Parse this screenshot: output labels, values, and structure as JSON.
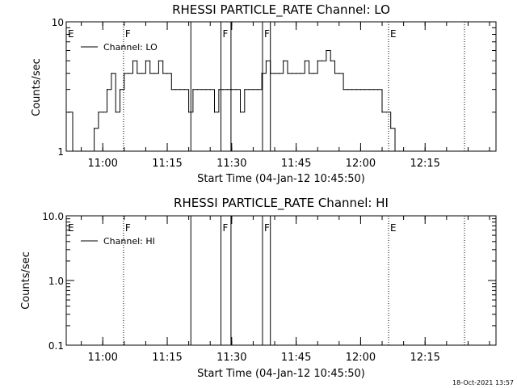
{
  "footer_timestamp": "18-Oct-2021 13:57",
  "chart_data": [
    {
      "type": "line",
      "title": "RHESSI PARTICLE_RATE Channel: LO",
      "xlabel": "Start Time (04-Jan-12 10:45:50)",
      "ylabel": "Counts/sec",
      "y_scale": "log",
      "ylim": [
        1,
        10
      ],
      "y_ticks": [
        "1",
        "10"
      ],
      "x_ticks": [
        "11:00",
        "11:15",
        "11:30",
        "11:45",
        "12:00",
        "12:15"
      ],
      "xlim": [
        "10:51:30",
        "12:31:30"
      ],
      "legend": {
        "placement": "top-left",
        "label": "Channel: LO"
      },
      "markers": [
        {
          "label": "E",
          "time": "10:51:30",
          "style": "solid"
        },
        {
          "label": "F",
          "time": "11:04:50",
          "style": "dotted"
        },
        {
          "label": "",
          "time": "11:20:30",
          "style": "solid"
        },
        {
          "label": "F",
          "time": "11:27:30",
          "style": "solid"
        },
        {
          "label": "",
          "time": "11:29:50",
          "style": "solid"
        },
        {
          "label": "F",
          "time": "11:37:10",
          "style": "solid"
        },
        {
          "label": "",
          "time": "11:39:00",
          "style": "solid"
        },
        {
          "label": "E",
          "time": "12:06:30",
          "style": "dotted"
        },
        {
          "label": "",
          "time": "12:24:10",
          "style": "dotted"
        }
      ],
      "series": [
        {
          "x": [
            "10:52:00",
            "10:53:00",
            "10:54:00",
            "10:55:00",
            "10:56:00",
            "10:57:00",
            "10:58:00",
            "10:59:00",
            "11:00:00",
            "11:01:00",
            "11:02:00",
            "11:03:00",
            "11:04:00",
            "11:05:00",
            "11:06:00",
            "11:07:00",
            "11:08:00",
            "11:09:00",
            "11:10:00",
            "11:11:00",
            "11:12:00",
            "11:13:00",
            "11:14:00",
            "11:15:00",
            "11:16:00",
            "11:17:00",
            "11:18:00",
            "11:19:00",
            "11:20:00",
            "11:21:00",
            "11:22:00",
            "11:23:00",
            "11:24:00",
            "11:25:00",
            "11:26:00",
            "11:27:00",
            "11:28:00",
            "11:29:00",
            "11:30:00",
            "11:31:00",
            "11:32:00",
            "11:33:00",
            "11:34:00",
            "11:35:00",
            "11:36:00",
            "11:37:00",
            "11:38:00",
            "11:39:00",
            "11:40:00",
            "11:41:00",
            "11:42:00",
            "11:43:00",
            "11:44:00",
            "11:45:00",
            "11:46:00",
            "11:47:00",
            "11:48:00",
            "11:49:00",
            "11:50:00",
            "11:51:00",
            "11:52:00",
            "11:53:00",
            "11:54:00",
            "11:55:00",
            "11:56:00",
            "11:57:00",
            "11:58:00",
            "11:59:00",
            "12:00:00",
            "12:01:00",
            "12:02:00",
            "12:03:00",
            "12:04:00",
            "12:05:00",
            "12:06:00",
            "12:07:00",
            "12:08:00",
            "12:09:00"
          ],
          "y": [
            2,
            1,
            1,
            1,
            1,
            1,
            1.5,
            2,
            2,
            3,
            4,
            2,
            3,
            4,
            4,
            5,
            4,
            4,
            5,
            4,
            4,
            5,
            4,
            4,
            3,
            3,
            3,
            3,
            2,
            3,
            3,
            3,
            3,
            3,
            2,
            3,
            3,
            3,
            3,
            3,
            2,
            3,
            3,
            3,
            3,
            4,
            5,
            4,
            4,
            4,
            5,
            4,
            4,
            4,
            4,
            5,
            4,
            4,
            5,
            5,
            6,
            5,
            4,
            4,
            3,
            3,
            3,
            3,
            3,
            3,
            3,
            3,
            3,
            2,
            2,
            1.5,
            1,
            1
          ]
        }
      ]
    },
    {
      "type": "line",
      "title": "RHESSI PARTICLE_RATE Channel: HI",
      "xlabel": "Start Time (04-Jan-12 10:45:50)",
      "ylabel": "Counts/sec",
      "y_scale": "log",
      "ylim": [
        0.1,
        10
      ],
      "y_ticks": [
        "0.1",
        "1.0",
        "10.0"
      ],
      "x_ticks": [
        "11:00",
        "11:15",
        "11:30",
        "11:45",
        "12:00",
        "12:15"
      ],
      "xlim": [
        "10:51:30",
        "12:31:30"
      ],
      "legend": {
        "placement": "top-left",
        "label": "Channel: HI"
      },
      "markers": [
        {
          "label": "E",
          "time": "10:51:30",
          "style": "solid"
        },
        {
          "label": "F",
          "time": "11:04:50",
          "style": "dotted"
        },
        {
          "label": "",
          "time": "11:20:30",
          "style": "solid"
        },
        {
          "label": "F",
          "time": "11:27:30",
          "style": "solid"
        },
        {
          "label": "",
          "time": "11:29:50",
          "style": "solid"
        },
        {
          "label": "F",
          "time": "11:37:10",
          "style": "solid"
        },
        {
          "label": "",
          "time": "11:39:00",
          "style": "solid"
        },
        {
          "label": "E",
          "time": "12:06:30",
          "style": "dotted"
        },
        {
          "label": "",
          "time": "12:24:10",
          "style": "dotted"
        }
      ],
      "series": [
        {
          "x": [],
          "y": []
        }
      ]
    }
  ]
}
